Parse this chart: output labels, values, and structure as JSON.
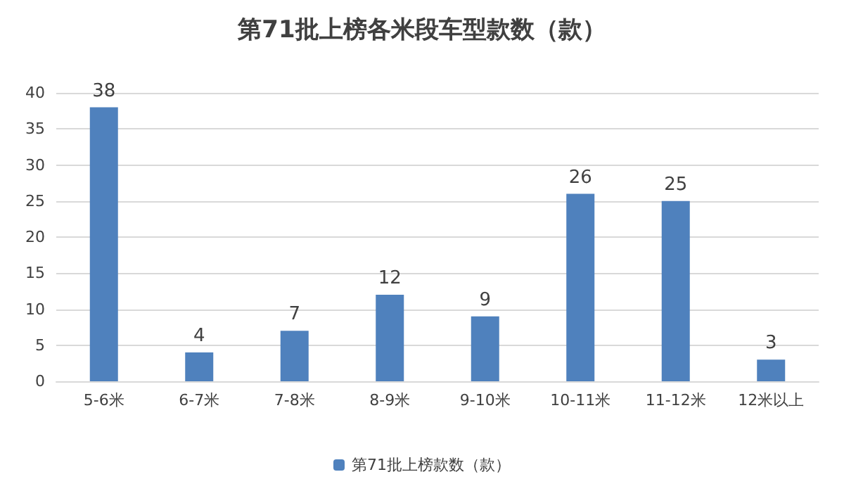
{
  "chart_data": {
    "type": "bar",
    "title": "第71批上榜各米段车型款数（款）",
    "categories": [
      "5-6米",
      "6-7米",
      "7-8米",
      "8-9米",
      "9-10米",
      "10-11米",
      "11-12米",
      "12米以上"
    ],
    "series": [
      {
        "name": "第71批上榜款数（款）",
        "color": "#4f81bd",
        "values": [
          38,
          4,
          7,
          12,
          9,
          26,
          25,
          3
        ]
      }
    ],
    "ylim": [
      0,
      40
    ],
    "yticks": [
      0,
      5,
      10,
      15,
      20,
      25,
      30,
      35,
      40
    ],
    "grid": "y",
    "legend": "bottom",
    "data_labels": true
  }
}
